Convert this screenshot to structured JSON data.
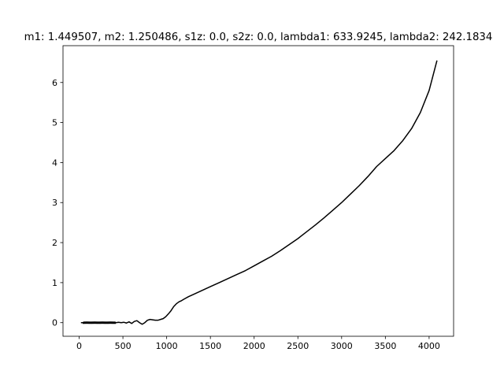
{
  "chart_data": {
    "type": "line",
    "title": "m1: 1.449507, m2: 1.250486, s1z: 0.0, s2z: 0.0, lambda1: 633.9245, lambda2: 242.1834",
    "xlabel": "",
    "ylabel": "",
    "xlim": [
      -185,
      4280
    ],
    "ylim": [
      -0.34,
      6.92
    ],
    "x_ticks": [
      0,
      500,
      1000,
      1500,
      2000,
      2500,
      3000,
      3500,
      4000
    ],
    "x_tick_labels": [
      "0",
      "500",
      "1000",
      "1500",
      "2000",
      "2500",
      "3000",
      "3500",
      "4000"
    ],
    "y_ticks": [
      0,
      1,
      2,
      3,
      4,
      5,
      6
    ],
    "y_tick_labels": [
      "0",
      "1",
      "2",
      "3",
      "4",
      "5",
      "6"
    ],
    "grid": false,
    "line_color": "#000000",
    "series": [
      {
        "x": [
          20,
          420,
          450,
          480,
          510,
          540,
          570,
          600,
          630,
          660,
          690,
          720,
          750,
          780,
          810,
          840,
          870,
          900,
          930,
          960,
          990,
          1020,
          1050,
          1080,
          1110,
          1140,
          1170,
          1200,
          1250,
          1300,
          1400,
          1500,
          1600,
          1700,
          1800,
          1900,
          2000,
          2100,
          2200,
          2300,
          2400,
          2500,
          2600,
          2700,
          2800,
          2900,
          3000,
          3100,
          3200,
          3300,
          3400,
          3500,
          3600,
          3700,
          3800,
          3900,
          4000,
          4090
        ],
        "y": [
          0.0,
          0.0,
          0.01,
          0.0,
          0.01,
          -0.01,
          0.02,
          -0.02,
          0.03,
          0.05,
          0.0,
          -0.04,
          0.0,
          0.06,
          0.08,
          0.07,
          0.06,
          0.06,
          0.08,
          0.1,
          0.15,
          0.22,
          0.3,
          0.4,
          0.47,
          0.52,
          0.55,
          0.59,
          0.65,
          0.7,
          0.8,
          0.9,
          1.0,
          1.1,
          1.2,
          1.3,
          1.42,
          1.54,
          1.66,
          1.8,
          1.95,
          2.1,
          2.27,
          2.44,
          2.62,
          2.81,
          3.0,
          3.21,
          3.42,
          3.65,
          3.9,
          4.1,
          4.3,
          4.55,
          4.85,
          5.25,
          5.8,
          6.55
        ]
      }
    ]
  }
}
